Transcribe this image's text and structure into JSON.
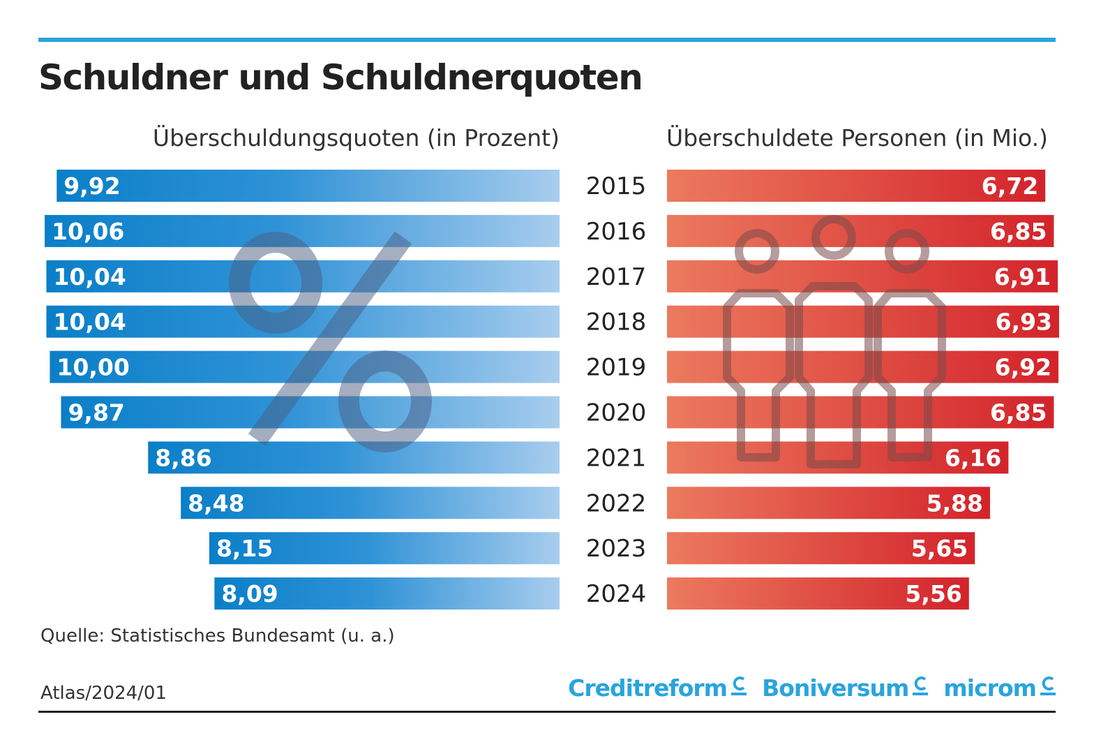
{
  "title": "Schuldner und Schuldnerquoten",
  "source": "Quelle: Statistisches Bundesamt (u. a.)",
  "atlas": "Atlas/2024/01",
  "logos": [
    "Creditreform",
    "Boniversum",
    "microm"
  ],
  "colors": {
    "accent": "#2aa4dd",
    "blue_dark": "#0a7fc8",
    "blue_light": "#a8cdee",
    "red_light": "#ec7a5e",
    "red_dark": "#d3232b"
  },
  "icons": {
    "left": "percent-icon",
    "right": "people-icon",
    "logo": "creditreform-c-icon"
  },
  "chart_data": {
    "type": "bar",
    "title": "Schuldner und Schuldnerquoten",
    "categories": [
      "2015",
      "2016",
      "2017",
      "2018",
      "2019",
      "2020",
      "2021",
      "2022",
      "2023",
      "2024"
    ],
    "series": [
      {
        "name": "Überschuldungsquoten (in Prozent)",
        "values": [
          9.92,
          10.06,
          10.04,
          10.04,
          10.0,
          9.87,
          8.86,
          8.48,
          8.15,
          8.09
        ],
        "labels": [
          "9,92",
          "10,06",
          "10,04",
          "10,04",
          "10,00",
          "9,87",
          "8,86",
          "8,48",
          "8,15",
          "8,09"
        ]
      },
      {
        "name": "Überschuldete Personen (in Mio.)",
        "values": [
          6.72,
          6.85,
          6.91,
          6.93,
          6.92,
          6.85,
          6.16,
          5.88,
          5.65,
          5.56
        ],
        "labels": [
          "6,72",
          "6,85",
          "6,91",
          "6,93",
          "6,92",
          "6,85",
          "6,16",
          "5,88",
          "5,65",
          "5,56"
        ]
      }
    ],
    "xlabel": "",
    "ylabel": "",
    "legend": "none"
  }
}
